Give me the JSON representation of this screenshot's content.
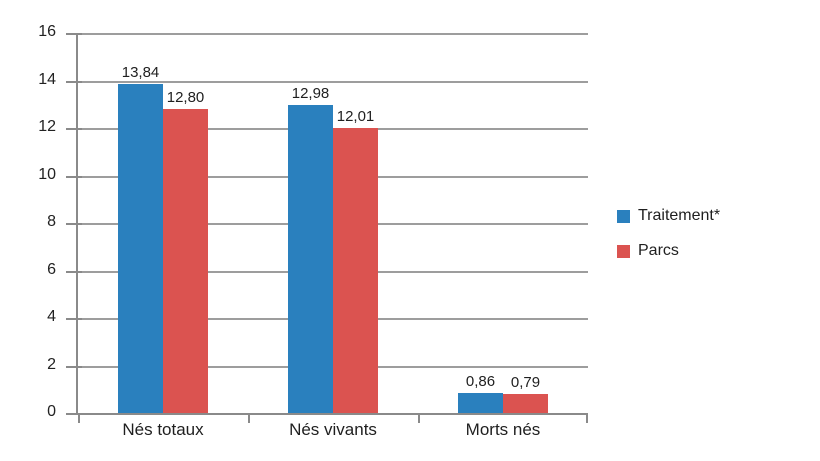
{
  "chart_data": {
    "type": "bar",
    "categories": [
      "Nés totaux",
      "Nés vivants",
      "Morts nés"
    ],
    "series": [
      {
        "name": "Traitement*",
        "color": "#2A80BE",
        "values": [
          13.84,
          12.98,
          0.86
        ],
        "labels": [
          "13,84",
          "12,98",
          "0,86"
        ]
      },
      {
        "name": "Parcs",
        "color": "#DB5350",
        "values": [
          12.8,
          12.01,
          0.79
        ],
        "labels": [
          "12,80",
          "12,01",
          "0,79"
        ]
      }
    ],
    "ylim": [
      0,
      16
    ],
    "yticks": [
      0,
      2,
      4,
      6,
      8,
      10,
      12,
      14,
      16
    ],
    "ytick_labels": [
      "0",
      "2",
      "4",
      "6",
      "8",
      "10",
      "12",
      "14",
      "16"
    ],
    "grid": true,
    "legend_position": "right",
    "decimal_separator": ","
  },
  "colors": {
    "background": "#ffffff",
    "gridline": "#9d9d9d",
    "axis": "#8a8a8a",
    "text": "#1f1f1f"
  }
}
